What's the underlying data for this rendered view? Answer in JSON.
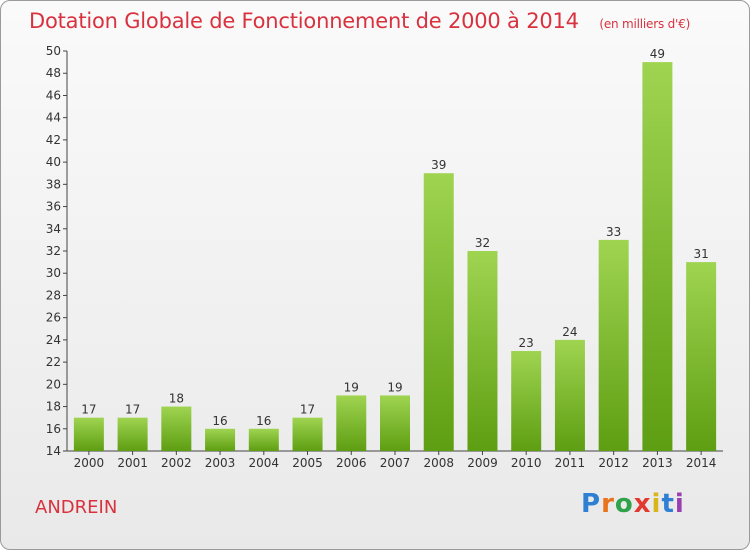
{
  "header": {
    "title": "Dotation Globale de Fonctionnement de 2000 à 2014",
    "unit": "(en milliers d'€)"
  },
  "footer": {
    "commune": "ANDREIN",
    "logo": "Proxiti"
  },
  "colors": {
    "title": "#d9323f",
    "bar_top": "#9fd451",
    "bar_bottom": "#5e9e12",
    "logo_letters": [
      "#2f7fd2",
      "#e8731c",
      "#2fa24a",
      "#e23a2f",
      "#d9b51a",
      "#2f7fd2",
      "#9a3fb0"
    ]
  },
  "chart_data": {
    "type": "bar",
    "title": "Dotation Globale de Fonctionnement de 2000 à 2014",
    "subtitle": "(en milliers d'€)",
    "categories": [
      "2000",
      "2001",
      "2002",
      "2003",
      "2004",
      "2005",
      "2006",
      "2007",
      "2008",
      "2009",
      "2010",
      "2011",
      "2012",
      "2013",
      "2014"
    ],
    "values": [
      17,
      17,
      18,
      16,
      16,
      17,
      19,
      19,
      39,
      32,
      23,
      24,
      33,
      49,
      31
    ],
    "data_labels": [
      "17",
      "17",
      "18",
      "16",
      "16",
      "17",
      "19",
      "19",
      "39",
      "32",
      "23",
      "24",
      "33",
      "49",
      "31"
    ],
    "ylim": [
      14,
      50
    ],
    "yticks": [
      14,
      16,
      18,
      20,
      22,
      24,
      26,
      28,
      30,
      32,
      34,
      36,
      38,
      40,
      42,
      44,
      46,
      48,
      50
    ],
    "grid": false,
    "legend": "none"
  }
}
